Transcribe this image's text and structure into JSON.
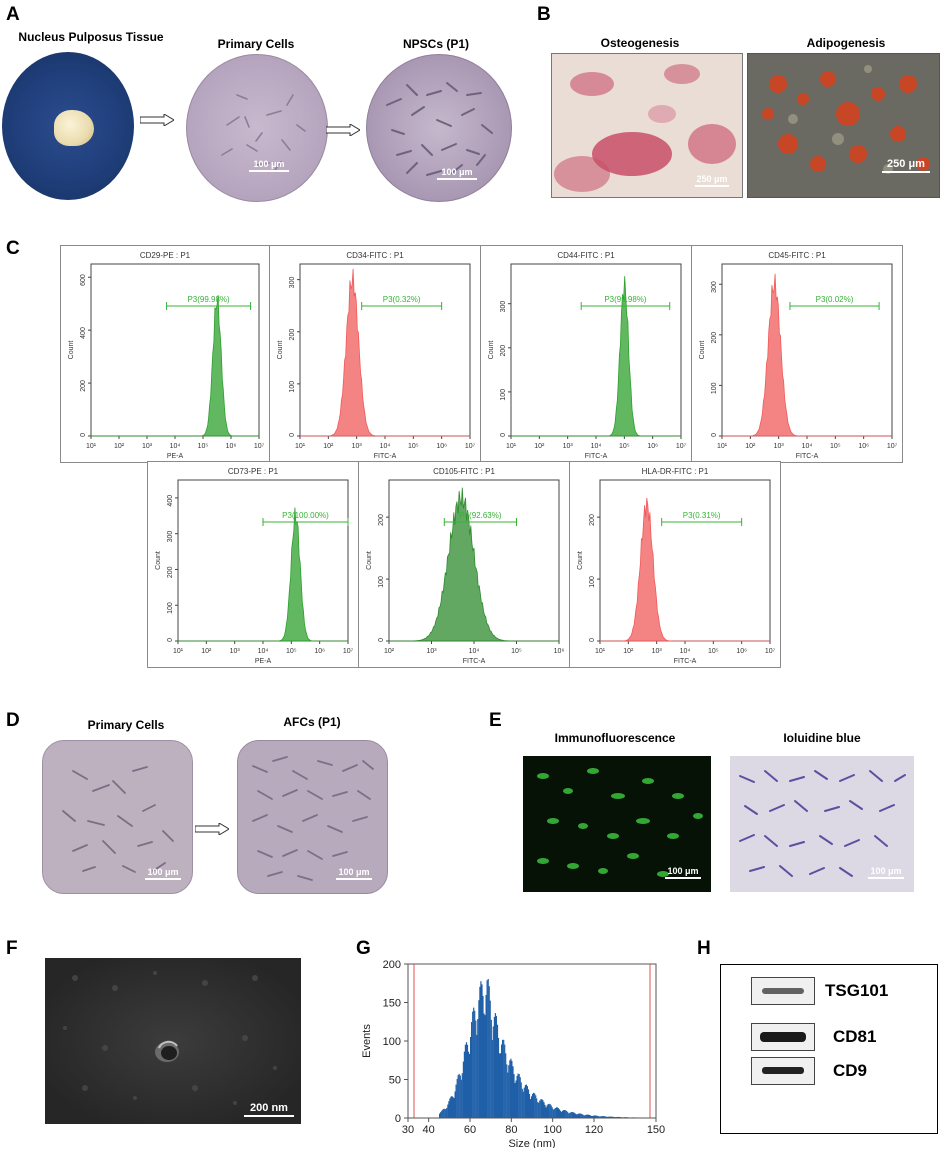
{
  "panels": {
    "A": {
      "letter": "A",
      "titles": [
        "Nucleus Pulposus Tissue",
        "Primary Cells",
        "NPSCs (P1)"
      ],
      "scale_bars": [
        "100 μm",
        "100 μm"
      ]
    },
    "B": {
      "letter": "B",
      "titles": [
        "Osteogenesis",
        "Adipogenesis"
      ],
      "scale_bars": [
        "250 μm",
        "250 μm"
      ]
    },
    "C": {
      "letter": "C",
      "y_axis_label": "Count",
      "x_tick_labels": [
        "10¹",
        "10²",
        "10³",
        "10⁴",
        "10⁵",
        "10⁶",
        "10⁷"
      ],
      "cd105_x_tick_labels": [
        "10²",
        "10³",
        "10⁴",
        "10⁵",
        "10⁶"
      ]
    },
    "D": {
      "letter": "D",
      "titles": [
        "Primary Cells",
        "AFCs (P1)"
      ],
      "scale_bars": [
        "100 μm",
        "100 μm"
      ]
    },
    "E": {
      "letter": "E",
      "titles": [
        "Immunofluorescence",
        "Ioluidine blue"
      ],
      "scale_bars": [
        "100 μm",
        "100 μm"
      ]
    },
    "F": {
      "letter": "F",
      "scale_bar": "200 nm"
    },
    "G": {
      "letter": "G"
    },
    "H": {
      "letter": "H",
      "bands": [
        "TSG101",
        "CD81",
        "CD9"
      ]
    }
  },
  "chart_data": [
    {
      "type": "area",
      "panel": "C",
      "title": "CD29-PE : P1",
      "xlabel": "PE-A",
      "ylabel": "Count",
      "x_scale": "log",
      "xlim": [
        10,
        10000000
      ],
      "ylim": [
        0,
        650
      ],
      "y_ticks": [
        0,
        200,
        400,
        600
      ],
      "gate": {
        "label": "P3(99.98%)",
        "range": [
          5000,
          5000000
        ]
      },
      "peak": {
        "center_log10": 5.5,
        "height": 510,
        "width_log10": 0.15
      },
      "color": "#2ca02c"
    },
    {
      "type": "area",
      "panel": "C",
      "title": "CD34-FITC : P1",
      "xlabel": "FITC-A",
      "ylabel": "Count",
      "x_scale": "log",
      "xlim": [
        10,
        10000000
      ],
      "ylim": [
        0,
        330
      ],
      "y_ticks": [
        0,
        100,
        200,
        300
      ],
      "gate": {
        "label": "P3(0.32%)",
        "range": [
          1500,
          1000000
        ]
      },
      "peak": {
        "center_log10": 2.85,
        "height": 300,
        "width_log10": 0.22
      },
      "color": "#f05a5a"
    },
    {
      "type": "area",
      "panel": "C",
      "title": "CD44-FITC : P1",
      "xlabel": "FITC-A",
      "ylabel": "Count",
      "x_scale": "log",
      "xlim": [
        10,
        10000000
      ],
      "ylim": [
        0,
        390
      ],
      "y_ticks": [
        0,
        100,
        200,
        300
      ],
      "gate": {
        "label": "P3(99.98%)",
        "range": [
          3000,
          4000000
        ]
      },
      "peak": {
        "center_log10": 5.0,
        "height": 340,
        "width_log10": 0.15
      },
      "color": "#2ca02c"
    },
    {
      "type": "area",
      "panel": "C",
      "title": "CD45-FITC : P1",
      "xlabel": "FITC-A",
      "ylabel": "Count",
      "x_scale": "log",
      "xlim": [
        10,
        10000000
      ],
      "ylim": [
        0,
        340
      ],
      "y_ticks": [
        0,
        100,
        200,
        300
      ],
      "gate": {
        "label": "P3(0.02%)",
        "range": [
          2500,
          3500000
        ]
      },
      "peak": {
        "center_log10": 2.85,
        "height": 300,
        "width_log10": 0.22
      },
      "color": "#f05a5a"
    },
    {
      "type": "area",
      "panel": "C",
      "title": "CD73-PE : P1",
      "xlabel": "PE-A",
      "ylabel": "Count",
      "x_scale": "log",
      "xlim": [
        10,
        10000000
      ],
      "ylim": [
        0,
        450
      ],
      "y_ticks": [
        0,
        100,
        200,
        300,
        400
      ],
      "gate": {
        "label": "P3(100.00%)",
        "range": [
          10000,
          20000000
        ]
      },
      "peak": {
        "center_log10": 5.15,
        "height": 350,
        "width_log10": 0.16
      },
      "color": "#2ca02c"
    },
    {
      "type": "area",
      "panel": "C",
      "title": "CD105-FITC : P1",
      "xlabel": "FITC-A",
      "ylabel": "Count",
      "x_scale": "log",
      "xlim": [
        100,
        1000000
      ],
      "ylim": [
        0,
        260
      ],
      "y_ticks": [
        0,
        100,
        200
      ],
      "gate": {
        "label": "P4(92.63%)",
        "range": [
          2000,
          100000
        ]
      },
      "peak": {
        "center_log10": 3.7,
        "height": 230,
        "width_log10": 0.3
      },
      "color": "#2e8b2e"
    },
    {
      "type": "area",
      "panel": "C",
      "title": "HLA-DR-FITC : P1",
      "xlabel": "FITC-A",
      "ylabel": "Count",
      "x_scale": "log",
      "xlim": [
        10,
        10000000
      ],
      "ylim": [
        0,
        260
      ],
      "y_ticks": [
        0,
        100,
        200
      ],
      "gate": {
        "label": "P3(0.31%)",
        "range": [
          1500,
          1000000
        ]
      },
      "peak": {
        "center_log10": 2.65,
        "height": 220,
        "width_log10": 0.22
      },
      "color": "#f05a5a"
    },
    {
      "type": "bar",
      "panel": "G",
      "xlabel": "Size (nm)",
      "ylabel": "Events",
      "xlim": [
        30,
        150
      ],
      "ylim": [
        0,
        200
      ],
      "x_ticks": [
        30,
        40,
        60,
        80,
        100,
        120,
        150
      ],
      "y_ticks": [
        0,
        50,
        100,
        150,
        200
      ],
      "distribution": {
        "start": 45,
        "mode": 68,
        "peak_events": 188,
        "tail_end": 145
      },
      "color": "#1f5fa8"
    }
  ]
}
